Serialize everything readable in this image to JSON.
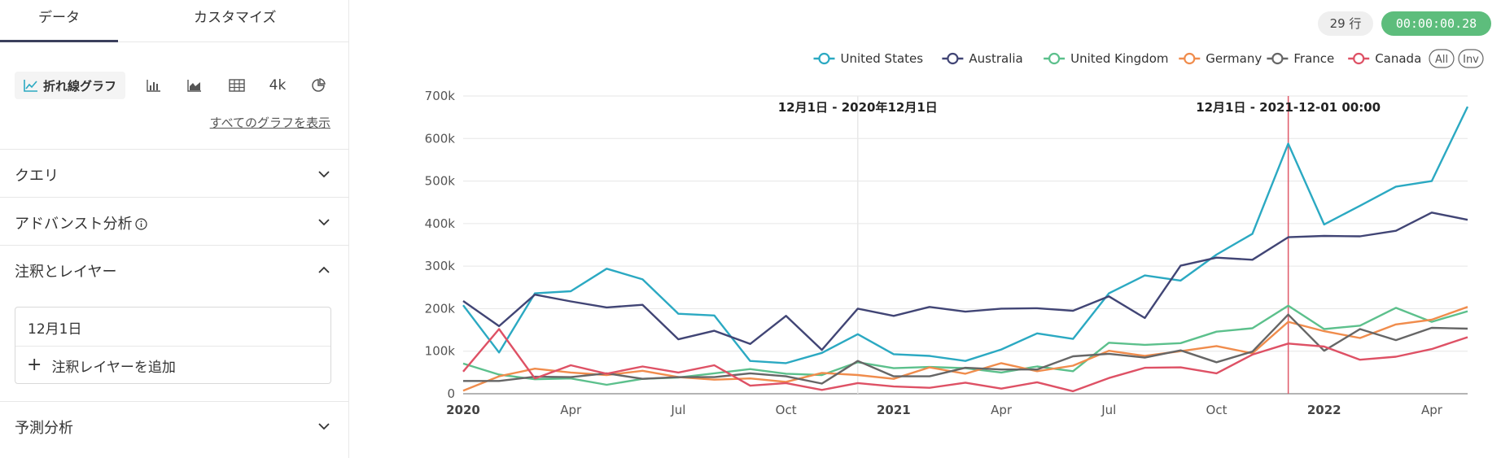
{
  "tabs": [
    {
      "label": "データ",
      "active": true
    },
    {
      "label": "カスタマイズ",
      "active": false
    }
  ],
  "chart_types": {
    "active_label": "折れ線グラフ",
    "number_label": "4k",
    "icons": [
      "line-chart-icon",
      "bar-chart-icon",
      "area-chart-icon",
      "table-icon",
      "number-icon",
      "pie-chart-icon"
    ],
    "show_all_label": "すべてのグラフを表示"
  },
  "sections": {
    "query": "クエリ",
    "advanced": "アドバンスト分析",
    "annotations": "注釈とレイヤー",
    "forecast": "予測分析"
  },
  "annotations": {
    "item": "12月1日",
    "add_label": "注釈レイヤーを追加"
  },
  "status": {
    "rows": "29 行",
    "timer": "00:00:00.28",
    "timer_color": "#5dbd7c"
  },
  "chart_data": {
    "type": "line",
    "title": "",
    "xlabel": "",
    "ylabel": "",
    "ylim": [
      0,
      700000
    ],
    "y_ticks": [
      0,
      100000,
      200000,
      300000,
      400000,
      500000,
      600000,
      700000
    ],
    "y_tick_labels": [
      "0",
      "100k",
      "200k",
      "300k",
      "400k",
      "500k",
      "600k",
      "700k"
    ],
    "x_ticks": [
      {
        "index": 0,
        "label": "2020",
        "bold": true
      },
      {
        "index": 3,
        "label": "Apr",
        "bold": false
      },
      {
        "index": 6,
        "label": "Jul",
        "bold": false
      },
      {
        "index": 9,
        "label": "Oct",
        "bold": false
      },
      {
        "index": 12,
        "label": "2021",
        "bold": true
      },
      {
        "index": 15,
        "label": "Apr",
        "bold": false
      },
      {
        "index": 18,
        "label": "Jul",
        "bold": false
      },
      {
        "index": 21,
        "label": "Oct",
        "bold": false
      },
      {
        "index": 24,
        "label": "2022",
        "bold": true
      },
      {
        "index": 27,
        "label": "Apr",
        "bold": false
      }
    ],
    "x": [
      "2020-01",
      "2020-02",
      "2020-03",
      "2020-04",
      "2020-05",
      "2020-06",
      "2020-07",
      "2020-08",
      "2020-09",
      "2020-10",
      "2020-11",
      "2020-12",
      "2021-01",
      "2021-02",
      "2021-03",
      "2021-04",
      "2021-05",
      "2021-06",
      "2021-07",
      "2021-08",
      "2021-09",
      "2021-10",
      "2021-11",
      "2021-12",
      "2022-01",
      "2022-02",
      "2022-03",
      "2022-04",
      "2022-05"
    ],
    "legend_extra": [
      "All",
      "Inv"
    ],
    "annotations": [
      {
        "index": 11,
        "label": "12月1日 - 2020年12月1日",
        "color": "#e8e8e8"
      },
      {
        "index": 23,
        "label": "12月1日 - 2021-12-01 00:00",
        "color": "#e05a6a"
      }
    ],
    "series": [
      {
        "name": "United States",
        "color": "#2ba9c2",
        "values": [
          208000,
          97000,
          236000,
          241000,
          294000,
          269000,
          188000,
          184000,
          77000,
          72000,
          96000,
          140000,
          93000,
          89000,
          77000,
          104000,
          142000,
          129000,
          236000,
          278000,
          266000,
          327000,
          376000,
          588000,
          398000,
          442000,
          487000,
          500000,
          675000
        ]
      },
      {
        "name": "Australia",
        "color": "#414575",
        "values": [
          218000,
          159000,
          233000,
          217000,
          203000,
          209000,
          128000,
          148000,
          117000,
          183000,
          103000,
          200000,
          183000,
          204000,
          193000,
          200000,
          201000,
          195000,
          229000,
          178000,
          301000,
          320000,
          315000,
          368000,
          371000,
          370000,
          383000,
          426000,
          409000
        ]
      },
      {
        "name": "United Kingdom",
        "color": "#5cc08c",
        "values": [
          71000,
          45000,
          34000,
          36000,
          21000,
          35000,
          38000,
          48000,
          58000,
          47000,
          44000,
          74000,
          60000,
          63000,
          60000,
          50000,
          64000,
          53000,
          120000,
          115000,
          119000,
          146000,
          154000,
          207000,
          152000,
          160000,
          202000,
          169000,
          194000
        ]
      },
      {
        "name": "Germany",
        "color": "#f08c4c",
        "values": [
          7000,
          41000,
          59000,
          50000,
          44000,
          54000,
          39000,
          33000,
          36000,
          28000,
          49000,
          44000,
          35000,
          62000,
          47000,
          72000,
          53000,
          66000,
          101000,
          89000,
          100000,
          112000,
          95000,
          169000,
          147000,
          131000,
          163000,
          174000,
          204000
        ]
      },
      {
        "name": "France",
        "color": "#666666",
        "values": [
          30000,
          30000,
          40000,
          39000,
          48000,
          35000,
          39000,
          39000,
          48000,
          41000,
          24000,
          77000,
          41000,
          41000,
          61000,
          57000,
          57000,
          88000,
          94000,
          85000,
          102000,
          74000,
          99000,
          186000,
          101000,
          152000,
          126000,
          155000,
          153000
        ]
      },
      {
        "name": "Canada",
        "color": "#de5165",
        "values": [
          52000,
          152000,
          36000,
          67000,
          47000,
          64000,
          50000,
          67000,
          19000,
          25000,
          9000,
          25000,
          17000,
          14000,
          26000,
          12000,
          27000,
          6000,
          37000,
          61000,
          62000,
          48000,
          92000,
          118000,
          111000,
          80000,
          87000,
          105000,
          133000
        ]
      }
    ]
  }
}
